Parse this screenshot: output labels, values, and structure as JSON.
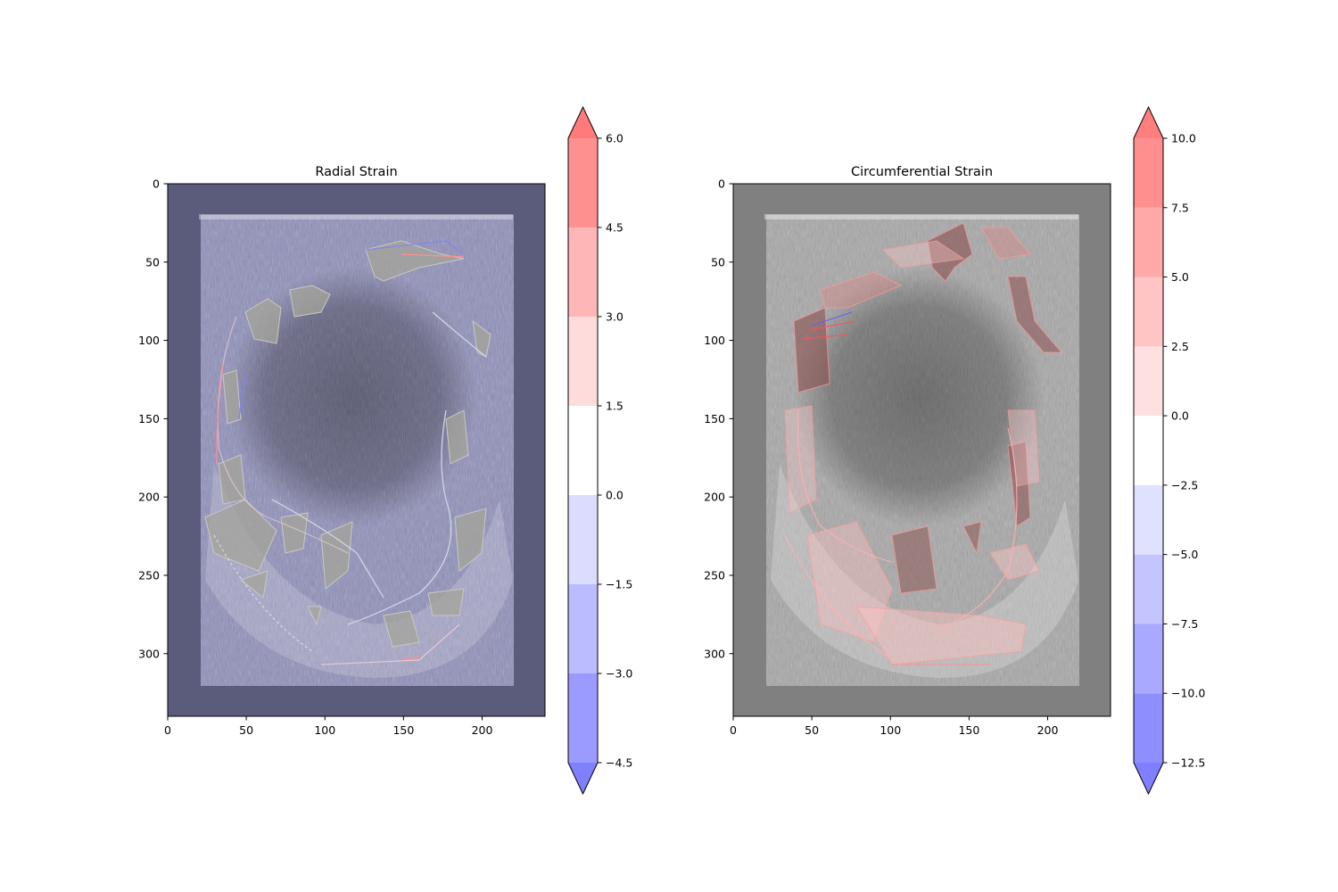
{
  "chart_data": [
    {
      "type": "heatmap",
      "title": "Radial Strain",
      "xlim": [
        0,
        240
      ],
      "ylim": [
        340,
        0
      ],
      "x_ticks": [
        0,
        50,
        100,
        150,
        200
      ],
      "y_ticks": [
        0,
        50,
        100,
        150,
        200,
        250,
        300
      ],
      "background_color": "#5b5b7c",
      "colorbar": {
        "boundaries": [
          -4.5,
          -3.0,
          -1.5,
          0.0,
          1.5,
          3.0,
          4.5,
          6.0
        ],
        "tick_labels": [
          "−4.5",
          "−3.0",
          "−1.5",
          "0.0",
          "1.5",
          "3.0",
          "4.5",
          "6.0"
        ],
        "colors": [
          "#9b9bff",
          "#bbbbff",
          "#dcdcff",
          "#ffffff",
          "#ffdcdc",
          "#ffb6b6",
          "#ff9090"
        ],
        "extend_low_color": "#8080ff",
        "extend_high_color": "#ff7a7a"
      }
    },
    {
      "type": "heatmap",
      "title": "Circumferential Strain",
      "xlim": [
        0,
        240
      ],
      "ylim": [
        340,
        0
      ],
      "x_ticks": [
        0,
        50,
        100,
        150,
        200
      ],
      "y_ticks": [
        0,
        50,
        100,
        150,
        200,
        250,
        300
      ],
      "background_color": "#808080",
      "colorbar": {
        "boundaries": [
          -12.5,
          -10.0,
          -7.5,
          -5.0,
          -2.5,
          0.0,
          2.5,
          5.0,
          7.5,
          10.0
        ],
        "tick_labels": [
          "−12.5",
          "−10.0",
          "−7.5",
          "−5.0",
          "−2.5",
          "0.0",
          "2.5",
          "5.0",
          "7.5",
          "10.0"
        ],
        "colors": [
          "#8e8eff",
          "#a9a9ff",
          "#c4c4ff",
          "#e0e0ff",
          "#ffffff",
          "#ffe0e0",
          "#ffc4c4",
          "#ffa9a9",
          "#ff8e8e"
        ],
        "extend_low_color": "#7f7fff",
        "extend_high_color": "#ff7f7f"
      }
    }
  ]
}
